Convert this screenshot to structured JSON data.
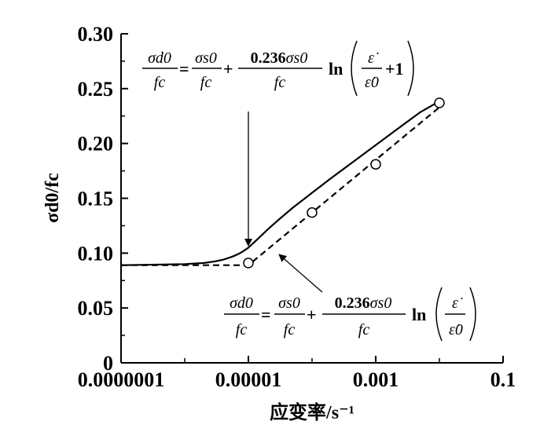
{
  "chart_data": {
    "type": "line",
    "title": "",
    "xlabel": "应变率/s⁻¹",
    "ylabel": "σd0/fc",
    "x_scale": "log",
    "xlim": [
      1e-07,
      0.1
    ],
    "ylim": [
      0,
      0.3
    ],
    "x_ticks": [
      "0.0000001",
      "0.00001",
      "0.001",
      "0.1"
    ],
    "y_ticks": [
      "0",
      "0.05",
      "0.10",
      "0.15",
      "0.20",
      "0.25",
      "0.30"
    ],
    "grid": false,
    "series": [
      {
        "style": "solid",
        "x": [
          1e-07,
          1e-06,
          2e-06,
          3e-06,
          4e-06,
          5e-06,
          6e-06,
          7e-06,
          8e-06,
          1e-05,
          1.5e-05,
          2e-05,
          3e-05,
          5e-05,
          0.0001,
          0.0002,
          0.0005,
          0.001,
          0.002,
          0.005,
          0.01
        ],
        "y": [
          0.089,
          0.09,
          0.091,
          0.0925,
          0.094,
          0.0958,
          0.0975,
          0.0993,
          0.1012,
          0.105,
          0.1145,
          0.1215,
          0.1305,
          0.1415,
          0.155,
          0.1685,
          0.1855,
          0.1985,
          0.2115,
          0.2285,
          0.2385
        ]
      },
      {
        "style": "dashed",
        "x": [
          1e-07,
          1e-05,
          0.0001,
          0.001,
          0.01
        ],
        "y": [
          0.089,
          0.089,
          0.137,
          0.185,
          0.233
        ]
      }
    ],
    "markers": [
      {
        "x": 1e-05,
        "y": 0.091
      },
      {
        "x": 0.0001,
        "y": 0.137
      },
      {
        "x": 0.001,
        "y": 0.181
      },
      {
        "x": 0.01,
        "y": 0.237
      }
    ],
    "annotations": [
      {
        "points_to": "solid",
        "lhs_num": "σd0",
        "lhs_den": "fc",
        "t1_num": "σs0",
        "t1_den": "fc",
        "t2_num_coef": "0.236",
        "t2_num_var": "σs0",
        "t2_den": "fc",
        "func": "ln",
        "arg_num": "ε̇",
        "arg_den": "ε̇0",
        "extra": "+1"
      },
      {
        "points_to": "dashed",
        "lhs_num": "σd0",
        "lhs_den": "fc",
        "t1_num": "σs0",
        "t1_den": "fc",
        "t2_num_coef": "0.236",
        "t2_num_var": "σs0",
        "t2_den": "fc",
        "func": "ln",
        "arg_num": "ε̇",
        "arg_den": "ε̇0",
        "extra": ""
      }
    ]
  }
}
